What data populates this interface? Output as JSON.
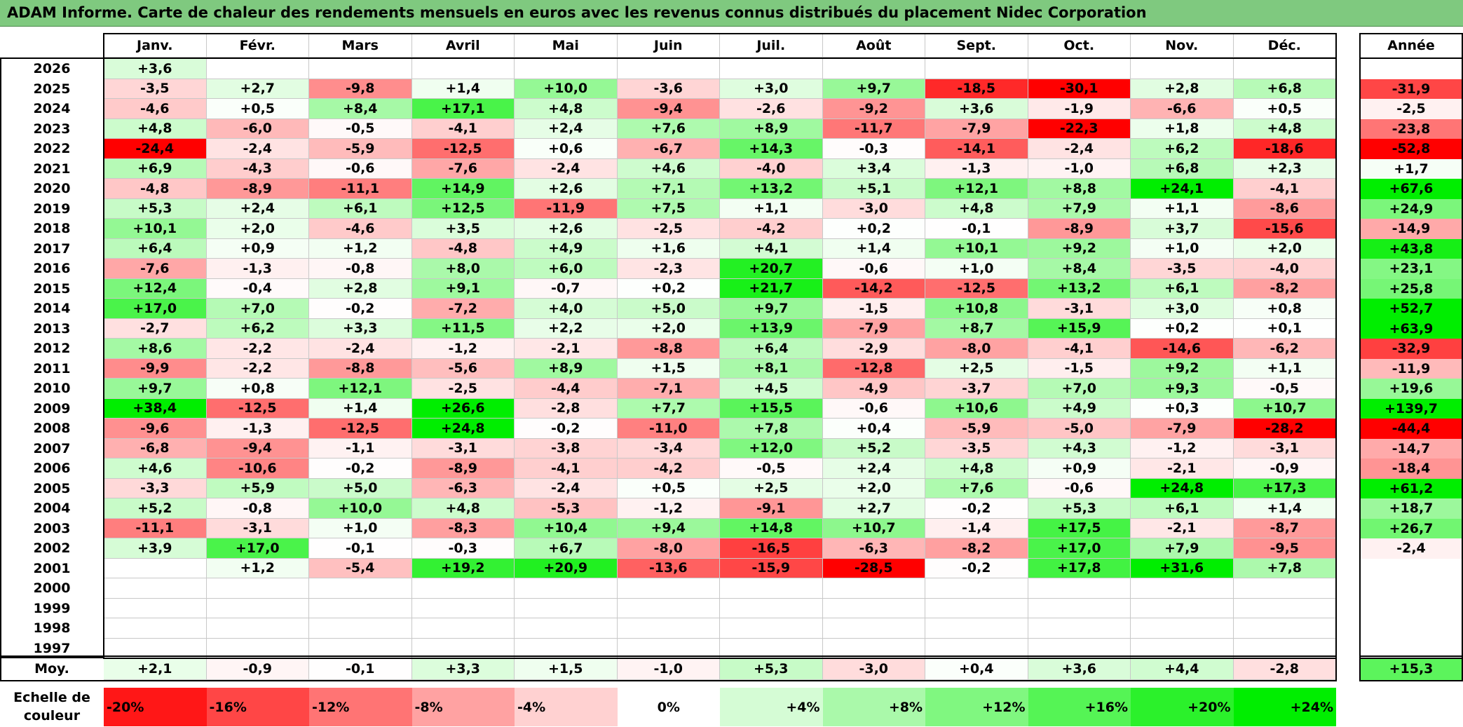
{
  "title": "ADAM Informe. Carte de chaleur des rendements mensuels en euros avec les revenus connus distribués du placement Nidec Corporation",
  "chart_data": {
    "type": "heatmap",
    "title": "ADAM Informe. Carte de chaleur des rendements mensuels en euros avec les revenus connus distribués du placement Nidec Corporation",
    "columns": [
      "Janv.",
      "Févr.",
      "Mars",
      "Avril",
      "Mai",
      "Juin",
      "Juil.",
      "Août",
      "Sept.",
      "Oct.",
      "Nov.",
      "Déc."
    ],
    "year_column": "Année",
    "rows": [
      {
        "year": "2026",
        "values": [
          "+3,6",
          "",
          "",
          "",
          "",
          "",
          "",
          "",
          "",
          "",
          "",
          ""
        ],
        "annual": ""
      },
      {
        "year": "2025",
        "values": [
          "-3,5",
          "+2,7",
          "-9,8",
          "+1,4",
          "+10,0",
          "-3,6",
          "+3,0",
          "+9,7",
          "-18,5",
          "-30,1",
          "+2,8",
          "+6,8"
        ],
        "annual": "-31,9"
      },
      {
        "year": "2024",
        "values": [
          "-4,6",
          "+0,5",
          "+8,4",
          "+17,1",
          "+4,8",
          "-9,4",
          "-2,6",
          "-9,2",
          "+3,6",
          "-1,9",
          "-6,6",
          "+0,5"
        ],
        "annual": "-2,5"
      },
      {
        "year": "2023",
        "values": [
          "+4,8",
          "-6,0",
          "-0,5",
          "-4,1",
          "+2,4",
          "+7,6",
          "+8,9",
          "-11,7",
          "-7,9",
          "-22,3",
          "+1,8",
          "+4,8"
        ],
        "annual": "-23,8"
      },
      {
        "year": "2022",
        "values": [
          "-24,4",
          "-2,4",
          "-5,9",
          "-12,5",
          "+0,6",
          "-6,7",
          "+14,3",
          "-0,3",
          "-14,1",
          "-2,4",
          "+6,2",
          "-18,6"
        ],
        "annual": "-52,8"
      },
      {
        "year": "2021",
        "values": [
          "+6,9",
          "-4,3",
          "-0,6",
          "-7,6",
          "-2,4",
          "+4,6",
          "-4,0",
          "+3,4",
          "-1,3",
          "-1,0",
          "+6,8",
          "+2,3"
        ],
        "annual": "+1,7"
      },
      {
        "year": "2020",
        "values": [
          "-4,8",
          "-8,9",
          "-11,1",
          "+14,9",
          "+2,6",
          "+7,1",
          "+13,2",
          "+5,1",
          "+12,1",
          "+8,8",
          "+24,1",
          "-4,1"
        ],
        "annual": "+67,6"
      },
      {
        "year": "2019",
        "values": [
          "+5,3",
          "+2,4",
          "+6,1",
          "+12,5",
          "-11,9",
          "+7,5",
          "+1,1",
          "-3,0",
          "+4,8",
          "+7,9",
          "+1,1",
          "-8,6"
        ],
        "annual": "+24,9"
      },
      {
        "year": "2018",
        "values": [
          "+10,1",
          "+2,0",
          "-4,6",
          "+3,5",
          "+2,6",
          "-2,5",
          "-4,2",
          "+0,2",
          "-0,1",
          "-8,9",
          "+3,7",
          "-15,6"
        ],
        "annual": "-14,9"
      },
      {
        "year": "2017",
        "values": [
          "+6,4",
          "+0,9",
          "+1,2",
          "-4,8",
          "+4,9",
          "+1,6",
          "+4,1",
          "+1,4",
          "+10,1",
          "+9,2",
          "+1,0",
          "+2,0"
        ],
        "annual": "+43,8"
      },
      {
        "year": "2016",
        "values": [
          "-7,6",
          "-1,3",
          "-0,8",
          "+8,0",
          "+6,0",
          "-2,3",
          "+20,7",
          "-0,6",
          "+1,0",
          "+8,4",
          "-3,5",
          "-4,0"
        ],
        "annual": "+23,1"
      },
      {
        "year": "2015",
        "values": [
          "+12,4",
          "-0,4",
          "+2,8",
          "+9,1",
          "-0,7",
          "+0,2",
          "+21,7",
          "-14,2",
          "-12,5",
          "+13,2",
          "+6,1",
          "-8,2"
        ],
        "annual": "+25,8"
      },
      {
        "year": "2014",
        "values": [
          "+17,0",
          "+7,0",
          "-0,2",
          "-7,2",
          "+4,0",
          "+5,0",
          "+9,7",
          "-1,5",
          "+10,8",
          "-3,1",
          "+3,0",
          "+0,8"
        ],
        "annual": "+52,7"
      },
      {
        "year": "2013",
        "values": [
          "-2,7",
          "+6,2",
          "+3,3",
          "+11,5",
          "+2,2",
          "+2,0",
          "+13,9",
          "-7,9",
          "+8,7",
          "+15,9",
          "+0,2",
          "+0,1"
        ],
        "annual": "+63,9"
      },
      {
        "year": "2012",
        "values": [
          "+8,6",
          "-2,2",
          "-2,4",
          "-1,2",
          "-2,1",
          "-8,8",
          "+6,4",
          "-2,9",
          "-8,0",
          "-4,1",
          "-14,6",
          "-6,2"
        ],
        "annual": "-32,9"
      },
      {
        "year": "2011",
        "values": [
          "-9,9",
          "-2,2",
          "-8,8",
          "-5,6",
          "+8,9",
          "+1,5",
          "+8,1",
          "-12,8",
          "+2,5",
          "-1,5",
          "+9,2",
          "+1,1"
        ],
        "annual": "-11,9"
      },
      {
        "year": "2010",
        "values": [
          "+9,7",
          "+0,8",
          "+12,1",
          "-2,5",
          "-4,4",
          "-7,1",
          "+4,5",
          "-4,9",
          "-3,7",
          "+7,0",
          "+9,3",
          "-0,5"
        ],
        "annual": "+19,6"
      },
      {
        "year": "2009",
        "values": [
          "+38,4",
          "-12,5",
          "+1,4",
          "+26,6",
          "-2,8",
          "+7,7",
          "+15,5",
          "-0,6",
          "+10,6",
          "+4,9",
          "+0,3",
          "+10,7"
        ],
        "annual": "+139,7"
      },
      {
        "year": "2008",
        "values": [
          "-9,6",
          "-1,3",
          "-12,5",
          "+24,8",
          "-0,2",
          "-11,0",
          "+7,8",
          "+0,4",
          "-5,9",
          "-5,0",
          "-7,9",
          "-28,2"
        ],
        "annual": "-44,4"
      },
      {
        "year": "2007",
        "values": [
          "-6,8",
          "-9,4",
          "-1,1",
          "-3,1",
          "-3,8",
          "-3,4",
          "+12,0",
          "+5,2",
          "-3,5",
          "+4,3",
          "-1,2",
          "-3,1"
        ],
        "annual": "-14,7"
      },
      {
        "year": "2006",
        "values": [
          "+4,6",
          "-10,6",
          "-0,2",
          "-8,9",
          "-4,1",
          "-4,2",
          "-0,5",
          "+2,4",
          "+4,8",
          "+0,9",
          "-2,1",
          "-0,9"
        ],
        "annual": "-18,4"
      },
      {
        "year": "2005",
        "values": [
          "-3,3",
          "+5,9",
          "+5,0",
          "-6,3",
          "-2,4",
          "+0,5",
          "+2,5",
          "+2,0",
          "+7,6",
          "-0,6",
          "+24,8",
          "+17,3"
        ],
        "annual": "+61,2"
      },
      {
        "year": "2004",
        "values": [
          "+5,2",
          "-0,8",
          "+10,0",
          "+4,8",
          "-5,3",
          "-1,2",
          "-9,1",
          "+2,7",
          "-0,2",
          "+5,3",
          "+6,1",
          "+1,4"
        ],
        "annual": "+18,7"
      },
      {
        "year": "2003",
        "values": [
          "-11,1",
          "-3,1",
          "+1,0",
          "-8,3",
          "+10,4",
          "+9,4",
          "+14,8",
          "+10,7",
          "-1,4",
          "+17,5",
          "-2,1",
          "-8,7"
        ],
        "annual": "+26,7"
      },
      {
        "year": "2002",
        "values": [
          "+3,9",
          "+17,0",
          "-0,1",
          "-0,3",
          "+6,7",
          "-8,0",
          "-16,5",
          "-6,3",
          "-8,2",
          "+17,0",
          "+7,9",
          "-9,5"
        ],
        "annual": "-2,4"
      },
      {
        "year": "2001",
        "values": [
          "",
          "+1,2",
          "-5,4",
          "+19,2",
          "+20,9",
          "-13,6",
          "-15,9",
          "-28,5",
          "-0,2",
          "+17,8",
          "+31,6",
          "+7,8"
        ],
        "annual": ""
      },
      {
        "year": "2000",
        "values": [
          "",
          "",
          "",
          "",
          "",
          "",
          "",
          "",
          "",
          "",
          "",
          ""
        ],
        "annual": ""
      },
      {
        "year": "1999",
        "values": [
          "",
          "",
          "",
          "",
          "",
          "",
          "",
          "",
          "",
          "",
          "",
          ""
        ],
        "annual": ""
      },
      {
        "year": "1998",
        "values": [
          "",
          "",
          "",
          "",
          "",
          "",
          "",
          "",
          "",
          "",
          "",
          ""
        ],
        "annual": ""
      },
      {
        "year": "1997",
        "values": [
          "",
          "",
          "",
          "",
          "",
          "",
          "",
          "",
          "",
          "",
          "",
          ""
        ],
        "annual": ""
      }
    ],
    "average": {
      "label": "Moy.",
      "values": [
        "+2,1",
        "-0,9",
        "-0,1",
        "+3,3",
        "+1,5",
        "-1,0",
        "+5,3",
        "-3,0",
        "+0,4",
        "+3,6",
        "+4,4",
        "-2,8"
      ],
      "annual": "+15,3"
    },
    "color_scale": {
      "label": "Echelle de couleur",
      "stops": [
        "-20%",
        "-16%",
        "-12%",
        "-8%",
        "-4%",
        "0%",
        "+4%",
        "+8%",
        "+12%",
        "+16%",
        "+20%",
        "+24%"
      ],
      "stop_values": [
        -20,
        -16,
        -12,
        -8,
        -4,
        0,
        4,
        8,
        12,
        16,
        20,
        24
      ]
    },
    "colors": {
      "negative": "#ff0000",
      "neutral": "#ffffff",
      "positive": "#00ee00"
    }
  }
}
